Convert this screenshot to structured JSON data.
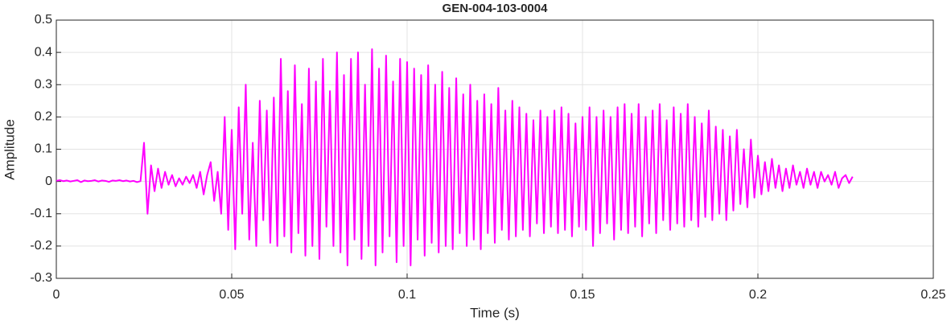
{
  "chart_data": {
    "type": "line",
    "title": "GEN-004-103-0004",
    "xlabel": "Time (s)",
    "ylabel": "Amplitude",
    "xlim": [
      0,
      0.25
    ],
    "xticks": [
      0,
      0.05,
      0.1,
      0.15,
      0.2,
      0.25
    ],
    "ylim": [
      -0.3,
      0.5
    ],
    "yticks": [
      -0.3,
      -0.2,
      -0.1,
      0,
      0.1,
      0.2,
      0.3,
      0.4,
      0.5
    ],
    "grid": true,
    "x": [
      0,
      0.001,
      0.002,
      0.003,
      0.004,
      0.005,
      0.006,
      0.007,
      0.008,
      0.009,
      0.01,
      0.011,
      0.012,
      0.013,
      0.014,
      0.015,
      0.016,
      0.017,
      0.018,
      0.019,
      0.02,
      0.021,
      0.022,
      0.023,
      0.024,
      0.025,
      0.026,
      0.027,
      0.028,
      0.029,
      0.03,
      0.031,
      0.032,
      0.033,
      0.034,
      0.035,
      0.036,
      0.037,
      0.038,
      0.039,
      0.04,
      0.041,
      0.042,
      0.043,
      0.044,
      0.045,
      0.046,
      0.047,
      0.048,
      0.049,
      0.05,
      0.051,
      0.052,
      0.053,
      0.054,
      0.055,
      0.056,
      0.057,
      0.058,
      0.059,
      0.06,
      0.061,
      0.062,
      0.063,
      0.064,
      0.065,
      0.066,
      0.067,
      0.068,
      0.069,
      0.07,
      0.071,
      0.072,
      0.073,
      0.074,
      0.075,
      0.076,
      0.077,
      0.078,
      0.079,
      0.08,
      0.081,
      0.082,
      0.083,
      0.084,
      0.085,
      0.086,
      0.087,
      0.088,
      0.089,
      0.09,
      0.091,
      0.092,
      0.093,
      0.094,
      0.095,
      0.096,
      0.097,
      0.098,
      0.099,
      0.1,
      0.101,
      0.102,
      0.103,
      0.104,
      0.105,
      0.106,
      0.107,
      0.108,
      0.109,
      0.11,
      0.111,
      0.112,
      0.113,
      0.114,
      0.115,
      0.116,
      0.117,
      0.118,
      0.119,
      0.12,
      0.121,
      0.122,
      0.123,
      0.124,
      0.125,
      0.126,
      0.127,
      0.128,
      0.129,
      0.13,
      0.131,
      0.132,
      0.133,
      0.134,
      0.135,
      0.136,
      0.137,
      0.138,
      0.139,
      0.14,
      0.141,
      0.142,
      0.143,
      0.144,
      0.145,
      0.146,
      0.147,
      0.148,
      0.149,
      0.15,
      0.151,
      0.152,
      0.153,
      0.154,
      0.155,
      0.156,
      0.157,
      0.158,
      0.159,
      0.16,
      0.161,
      0.162,
      0.163,
      0.164,
      0.165,
      0.166,
      0.167,
      0.168,
      0.169,
      0.17,
      0.171,
      0.172,
      0.173,
      0.174,
      0.175,
      0.176,
      0.177,
      0.178,
      0.179,
      0.18,
      0.181,
      0.182,
      0.183,
      0.184,
      0.185,
      0.186,
      0.187,
      0.188,
      0.189,
      0.19,
      0.191,
      0.192,
      0.193,
      0.194,
      0.195,
      0.196,
      0.197,
      0.198,
      0.199,
      0.2,
      0.201,
      0.202,
      0.203,
      0.204,
      0.205,
      0.206,
      0.207,
      0.208,
      0.209,
      0.21,
      0.211,
      0.212,
      0.213,
      0.214,
      0.215,
      0.216,
      0.217,
      0.218,
      0.219,
      0.22,
      0.221,
      0.222,
      0.223,
      0.224,
      0.225,
      0.226,
      0.227
    ],
    "series": [
      {
        "color": "#ff00ff",
        "values": [
          0.002,
          0.004,
          0.001,
          0.003,
          0,
          0.002,
          0.004,
          -0.002,
          0.003,
          0.001,
          0.002,
          0.004,
          0,
          0.003,
          0.002,
          -0.001,
          0.003,
          0.002,
          0.004,
          0.001,
          0.003,
          0,
          0.002,
          -0.002,
          0.001,
          0.12,
          -0.1,
          0.05,
          -0.03,
          0.04,
          -0.02,
          0.03,
          -0.01,
          0.02,
          -0.015,
          0.01,
          -0.01,
          0.015,
          -0.005,
          0.02,
          -0.02,
          0.03,
          -0.04,
          0.02,
          0.06,
          -0.06,
          0.03,
          -0.1,
          0.2,
          -0.15,
          0.16,
          -0.21,
          0.23,
          -0.1,
          0.3,
          -0.18,
          0.12,
          -0.2,
          0.25,
          -0.12,
          0.22,
          -0.19,
          0.26,
          -0.2,
          0.38,
          -0.17,
          0.28,
          -0.22,
          0.36,
          -0.16,
          0.24,
          -0.23,
          0.35,
          -0.2,
          0.31,
          -0.24,
          0.38,
          -0.14,
          0.28,
          -0.2,
          0.4,
          -0.22,
          0.33,
          -0.26,
          0.38,
          -0.18,
          0.4,
          -0.24,
          0.3,
          -0.2,
          0.41,
          -0.26,
          0.35,
          -0.22,
          0.39,
          -0.17,
          0.31,
          -0.25,
          0.38,
          -0.2,
          0.37,
          -0.26,
          0.35,
          -0.18,
          0.33,
          -0.23,
          0.36,
          -0.19,
          0.3,
          -0.22,
          0.34,
          -0.2,
          0.29,
          -0.21,
          0.32,
          -0.16,
          0.27,
          -0.2,
          0.3,
          -0.18,
          0.25,
          -0.21,
          0.27,
          -0.16,
          0.24,
          -0.19,
          0.29,
          -0.15,
          0.22,
          -0.18,
          0.25,
          -0.17,
          0.23,
          -0.15,
          0.21,
          -0.17,
          0.19,
          -0.13,
          0.22,
          -0.16,
          0.2,
          -0.14,
          0.22,
          -0.16,
          0.23,
          -0.15,
          0.21,
          -0.17,
          0.18,
          -0.14,
          0.2,
          -0.15,
          0.23,
          -0.2,
          0.2,
          -0.16,
          0.22,
          -0.13,
          0.2,
          -0.18,
          0.23,
          -0.15,
          0.24,
          -0.16,
          0.21,
          -0.14,
          0.24,
          -0.17,
          0.2,
          -0.13,
          0.22,
          -0.16,
          0.24,
          -0.12,
          0.19,
          -0.15,
          0.23,
          -0.13,
          0.21,
          -0.14,
          0.24,
          -0.12,
          0.2,
          -0.14,
          0.18,
          -0.11,
          0.22,
          -0.12,
          0.17,
          -0.1,
          0.16,
          -0.12,
          0.14,
          -0.09,
          0.16,
          -0.07,
          0.1,
          -0.08,
          0.13,
          -0.05,
          0.08,
          -0.04,
          0.06,
          -0.03,
          0.07,
          -0.02,
          0.05,
          -0.03,
          0.04,
          -0.02,
          0.05,
          -0.01,
          0.03,
          -0.02,
          0.04,
          -0.01,
          0.03,
          -0.02,
          0.03,
          0,
          0.02,
          -0.01,
          0.03,
          -0.02,
          0.01,
          0.02,
          -0.005,
          0.015
        ]
      }
    ]
  }
}
